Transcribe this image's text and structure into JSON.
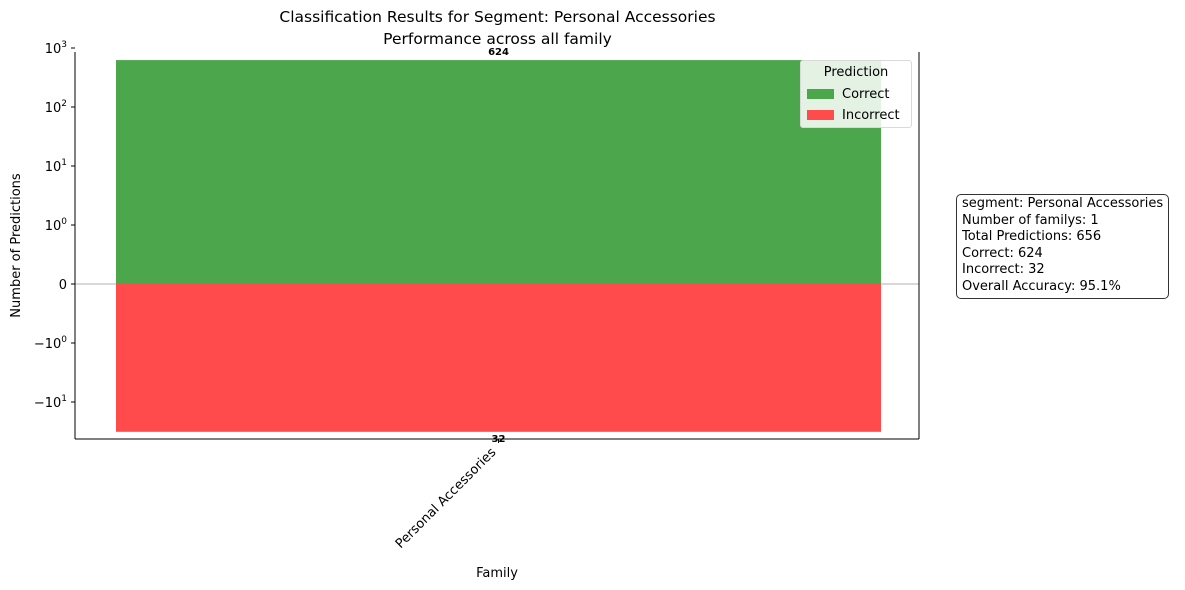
{
  "chart_data": {
    "type": "bar",
    "title": "Classification Results for Segment: Personal Accessories",
    "subtitle": "Performance across all family",
    "xlabel": "Family",
    "ylabel": "Number of Predictions",
    "yscale": "symlog",
    "categories": [
      "Personal Accessories"
    ],
    "series": [
      {
        "name": "Correct",
        "values": [
          624
        ],
        "color": "#4ca64c"
      },
      {
        "name": "Incorrect",
        "values": [
          -32
        ],
        "color": "#ff4b4b"
      }
    ],
    "data_labels": [
      "624",
      "32"
    ],
    "y_ticks": [
      {
        "value": 1000,
        "label": "10",
        "exp": "3"
      },
      {
        "value": 100,
        "label": "10",
        "exp": "2"
      },
      {
        "value": 10,
        "label": "10",
        "exp": "1"
      },
      {
        "value": 1,
        "label": "10",
        "exp": "0"
      },
      {
        "value": 0,
        "label": "0",
        "exp": ""
      },
      {
        "value": -1,
        "label": "−10",
        "exp": "0"
      },
      {
        "value": -10,
        "label": "−10",
        "exp": "1"
      }
    ],
    "legend": {
      "title": "Prediction",
      "position": "top-right"
    }
  },
  "stats_box": {
    "line1": "segment: Personal Accessories",
    "line2": "Number of familys: 1",
    "line3": "Total Predictions: 656",
    "line4": "Correct: 624",
    "line5": "Incorrect: 32",
    "line6": "Overall Accuracy: 95.1%"
  }
}
